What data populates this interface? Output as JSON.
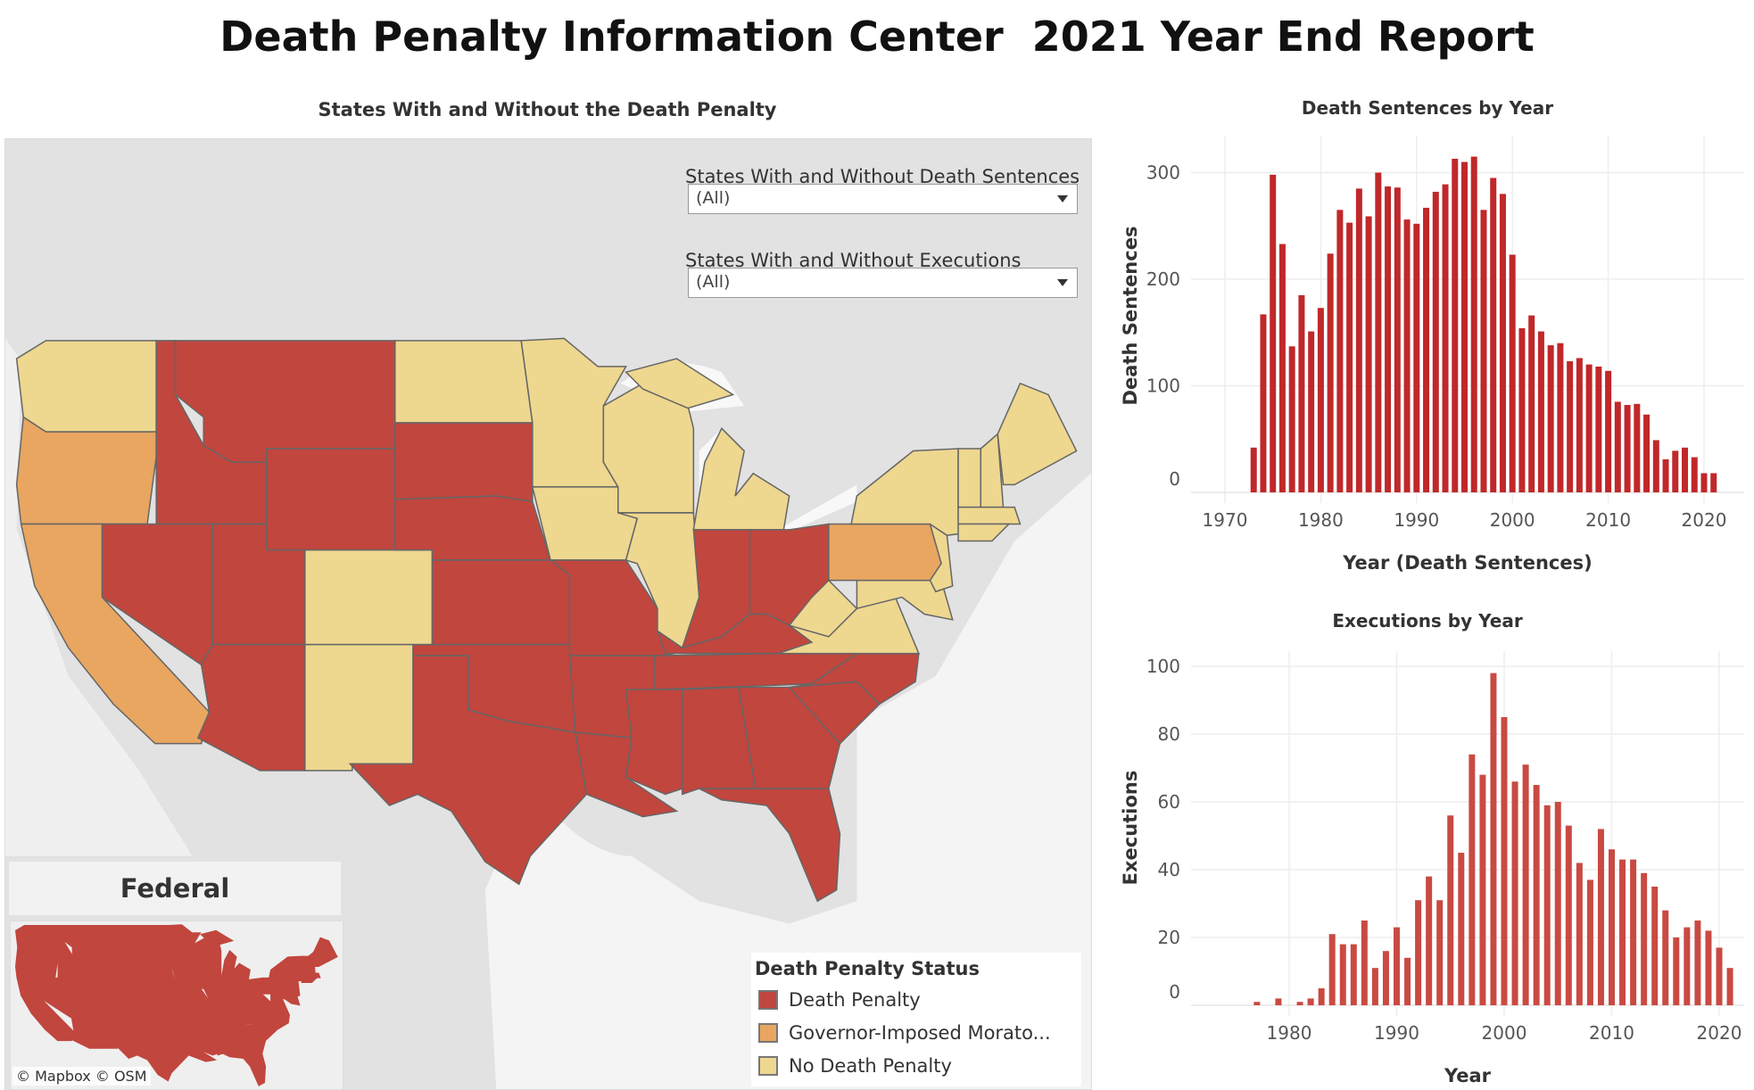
{
  "title": "Death Penalty Information Center  2021 Year End Report",
  "map": {
    "title": "States With and Without the Death Penalty",
    "filters": [
      {
        "label": "States With and Without Death Sentences",
        "value": "(All)"
      },
      {
        "label": "States With and Without Executions",
        "value": "(All)"
      }
    ],
    "legend": {
      "title": "Death Penalty Status",
      "items": [
        {
          "label": "Death Penalty",
          "color": "#c1463e"
        },
        {
          "label": "Governor-Imposed Morato...",
          "color": "#e8a661"
        },
        {
          "label": "No Death Penalty",
          "color": "#eed78f"
        }
      ]
    },
    "federal": {
      "label": "Federal",
      "status": "Death Penalty"
    },
    "attribution": "© Mapbox  © OSM"
  },
  "chart_data": [
    {
      "type": "bar",
      "title": "Death Sentences by Year",
      "xlabel": "Year (Death Sentences)",
      "ylabel": "Death Sentences",
      "ylim": [
        -10,
        330
      ],
      "yticks": [
        0,
        100,
        200,
        300
      ],
      "xticks": [
        1970,
        1980,
        1990,
        2000,
        2010,
        2020
      ],
      "color": "#c0282a",
      "x": [
        1973,
        1974,
        1975,
        1976,
        1977,
        1978,
        1979,
        1980,
        1981,
        1982,
        1983,
        1984,
        1985,
        1986,
        1987,
        1988,
        1989,
        1990,
        1991,
        1992,
        1993,
        1994,
        1995,
        1996,
        1997,
        1998,
        1999,
        2000,
        2001,
        2002,
        2003,
        2004,
        2005,
        2006,
        2007,
        2008,
        2009,
        2010,
        2011,
        2012,
        2013,
        2014,
        2015,
        2016,
        2017,
        2018,
        2019,
        2020,
        2021
      ],
      "values": [
        42,
        167,
        298,
        233,
        137,
        185,
        151,
        173,
        224,
        265,
        253,
        285,
        259,
        300,
        287,
        286,
        256,
        252,
        267,
        282,
        289,
        313,
        310,
        315,
        265,
        295,
        280,
        223,
        154,
        166,
        151,
        138,
        140,
        123,
        126,
        120,
        118,
        114,
        85,
        82,
        83,
        73,
        49,
        31,
        39,
        42,
        33,
        18,
        18
      ]
    },
    {
      "type": "bar",
      "title": "Executions by Year",
      "xlabel": "Year",
      "ylabel": "Executions",
      "ylim": [
        -3,
        102
      ],
      "yticks": [
        0,
        20,
        40,
        60,
        80,
        100
      ],
      "xticks": [
        1980,
        1990,
        2000,
        2010,
        2020
      ],
      "color": "#c94a42",
      "x": [
        1977,
        1979,
        1981,
        1982,
        1983,
        1984,
        1985,
        1986,
        1987,
        1988,
        1989,
        1990,
        1991,
        1992,
        1993,
        1994,
        1995,
        1996,
        1997,
        1998,
        1999,
        2000,
        2001,
        2002,
        2003,
        2004,
        2005,
        2006,
        2007,
        2008,
        2009,
        2010,
        2011,
        2012,
        2013,
        2014,
        2015,
        2016,
        2017,
        2018,
        2019,
        2020,
        2021
      ],
      "values": [
        1,
        2,
        1,
        2,
        5,
        21,
        18,
        18,
        25,
        11,
        16,
        23,
        14,
        31,
        38,
        31,
        56,
        45,
        74,
        68,
        98,
        85,
        66,
        71,
        65,
        59,
        60,
        53,
        42,
        37,
        52,
        46,
        43,
        43,
        39,
        35,
        28,
        20,
        23,
        25,
        22,
        17,
        11
      ]
    }
  ]
}
